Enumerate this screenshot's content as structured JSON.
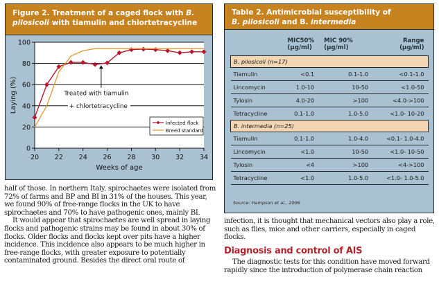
{
  "figure": {
    "title_prefix": "Figure 2. Treatment of a caged flock with ",
    "title_italic1": "B.",
    "title_italic2": "pilosicoli",
    "title_suffix": " with tiamulin and chlortetracycline",
    "annotation_line1": "Treated with tiamulin",
    "annotation_line2": "+ chlortetracycline"
  },
  "chart_data": {
    "type": "line",
    "title": "Figure 2. Treatment of a caged flock with B. pilosicoli with tiamulin and chlortetracycline",
    "xlabel": "Weeks of age",
    "ylabel": "Laying (%)",
    "xlim": [
      20,
      34
    ],
    "ylim": [
      0,
      100
    ],
    "xticks": [
      20,
      22,
      24,
      26,
      28,
      30,
      32,
      34
    ],
    "yticks": [
      0,
      20,
      40,
      60,
      80,
      100
    ],
    "grid": "horizontal",
    "legend_position": "lower right",
    "series": [
      {
        "name": "Infected flock",
        "color": "#b5172f",
        "marker": "diamond",
        "x": [
          20,
          21,
          22,
          23,
          24,
          25,
          26,
          27,
          28,
          29,
          30,
          31,
          32,
          33,
          34
        ],
        "values": [
          29,
          60,
          77,
          81,
          81,
          79,
          80.5,
          90,
          93,
          93.5,
          93,
          92,
          90,
          91,
          91
        ]
      },
      {
        "name": "Breed standard",
        "color": "#e0972f",
        "marker": "none",
        "x": [
          20,
          21,
          22,
          23,
          24,
          25,
          26,
          27,
          28,
          29,
          30,
          31,
          32,
          33,
          34
        ],
        "values": [
          20,
          40,
          72,
          87,
          92,
          94,
          94,
          94,
          94,
          94,
          94,
          94,
          94,
          94,
          94
        ]
      }
    ],
    "annotations": [
      {
        "text": "Treated with tiamulin + chlortetracycline",
        "arrow_to": {
          "x": 25.5,
          "y": 79
        }
      }
    ]
  },
  "table": {
    "title_line1": "Table 2. Antimicrobial susceptibility of",
    "title_italic_a": "B. pilosicoli",
    "title_and": " and B. ",
    "title_italic_b": "intermedia",
    "headers": [
      {
        "l1": "",
        "l2": ""
      },
      {
        "l1": "MIC50%",
        "l2": "(µg/ml)"
      },
      {
        "l1": "MIC 90%",
        "l2": "(µg/ml)"
      },
      {
        "l1": "Range",
        "l2": "(µg/ml)"
      }
    ],
    "groups": [
      {
        "label": "B. pilosicoli (n=17)",
        "rows": [
          [
            "Tiamulin",
            "<0.1",
            "0.1-1.0",
            "<0.1-1.0"
          ],
          [
            "Lincomycin",
            "1.0-10",
            "10-50",
            "<1.0-50"
          ],
          [
            "Tylosin",
            "4.0-20",
            ">100",
            "<4.0->100"
          ],
          [
            "Tetracycline",
            "0.1-1.0",
            "1.0-5.0",
            "<1.0- 10-20"
          ]
        ]
      },
      {
        "label": "B. intermedia (n=25)",
        "rows": [
          [
            "Tiamulin",
            "0.1-1.0",
            "1.0-4.0",
            "<0.1- 1.0-4.0"
          ],
          [
            "Lincomycin",
            "<1.0",
            "10-50",
            "<1.0- 10-50"
          ],
          [
            "Tylosin",
            "<4",
            ">100",
            "<4->100"
          ],
          [
            "Tetracycline",
            "<1.0",
            "1.0-5.0",
            "<1.0- 1.0-5.0"
          ]
        ]
      }
    ],
    "source": "Source: Hampson et al., 2006"
  },
  "text": {
    "col1_p1": "half of those. In northern Italy, spirochaetes were isolated from 72% of farms and BP and BI in 31% of the houses. This year, we found 90% of free-range flocks in the UK to have spirochaetes and 70% to have pathogenic ones, mainly BI.",
    "col1_p2": "It would appear that spirochaetes are well spread in laying flocks and pathogenic strains may be found in about 30% of flocks. Older flocks and flocks kept over pits have a higher incidence. This incidence also appears to be much higher in free-range flocks, with greater exposure to potentially contaminated ground. Besides the direct oral route of",
    "col2_p1": "infection, it is thought that mechanical vectors also play a role, such as flies, mice and other carriers, especially in caged flocks.",
    "col2_heading": "Diagnosis and control of AIS",
    "col2_p2": "The diagnostic tests for this condition have moved forward rapidly since the introduction of polymerase chain reaction"
  }
}
